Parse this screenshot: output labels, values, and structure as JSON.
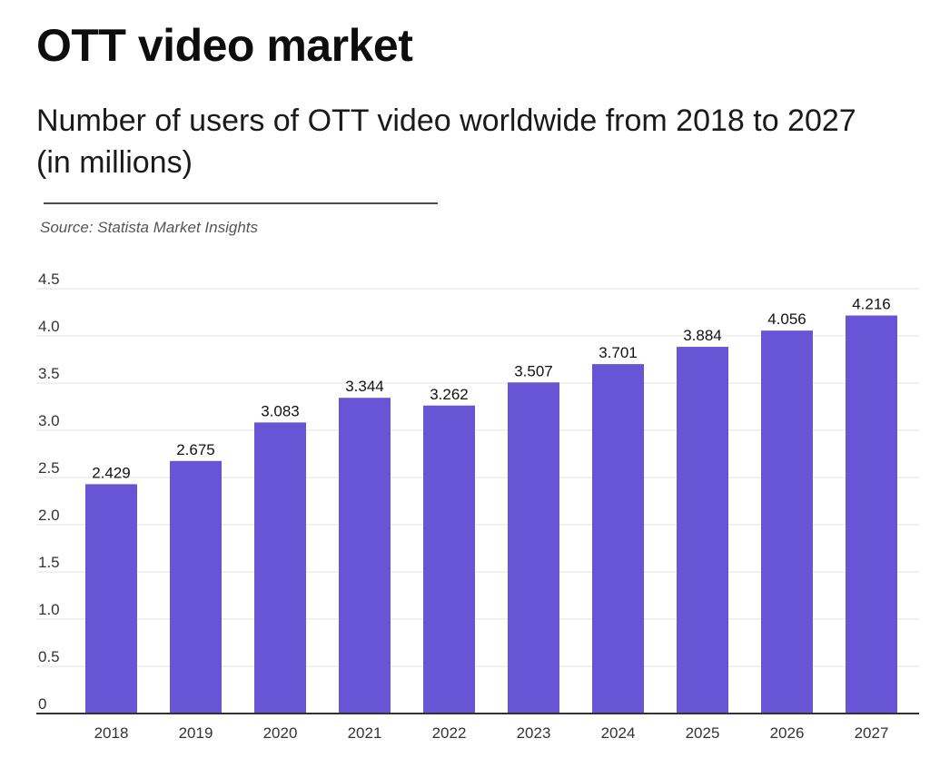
{
  "header": {
    "title": "OTT video market",
    "subtitle": "Number of users of OTT video worldwide from 2018 to 2027 (in millions)",
    "source": "Source: Statista Market Insights"
  },
  "chart_data": {
    "type": "bar",
    "title": "OTT video market",
    "subtitle": "Number of users of OTT video worldwide from 2018 to 2027 (in millions)",
    "xlabel": "",
    "ylabel": "",
    "categories": [
      "2018",
      "2019",
      "2020",
      "2021",
      "2022",
      "2023",
      "2024",
      "2025",
      "2026",
      "2027"
    ],
    "values": [
      2.429,
      2.675,
      3.083,
      3.344,
      3.262,
      3.507,
      3.701,
      3.884,
      4.056,
      4.216
    ],
    "value_labels": [
      "2.429",
      "2.675",
      "3.083",
      "3.344",
      "3.262",
      "3.507",
      "3.701",
      "3.884",
      "4.056",
      "4.216"
    ],
    "ylim": [
      0,
      4.5
    ],
    "yticks": [
      0,
      0.5,
      1.0,
      1.5,
      2.0,
      2.5,
      3.0,
      3.5,
      4.0,
      4.5
    ],
    "ytick_labels": [
      "0",
      "0.5",
      "1.0",
      "1.5",
      "2.0",
      "2.5",
      "3.0",
      "3.5",
      "4.0",
      "4.5"
    ],
    "grid": true,
    "legend": "none",
    "colors": {
      "bar": "#6755d5",
      "grid": "#e3e3e3",
      "axis": "#333333",
      "tick_text": "#333333",
      "value_text": "#111111"
    }
  }
}
